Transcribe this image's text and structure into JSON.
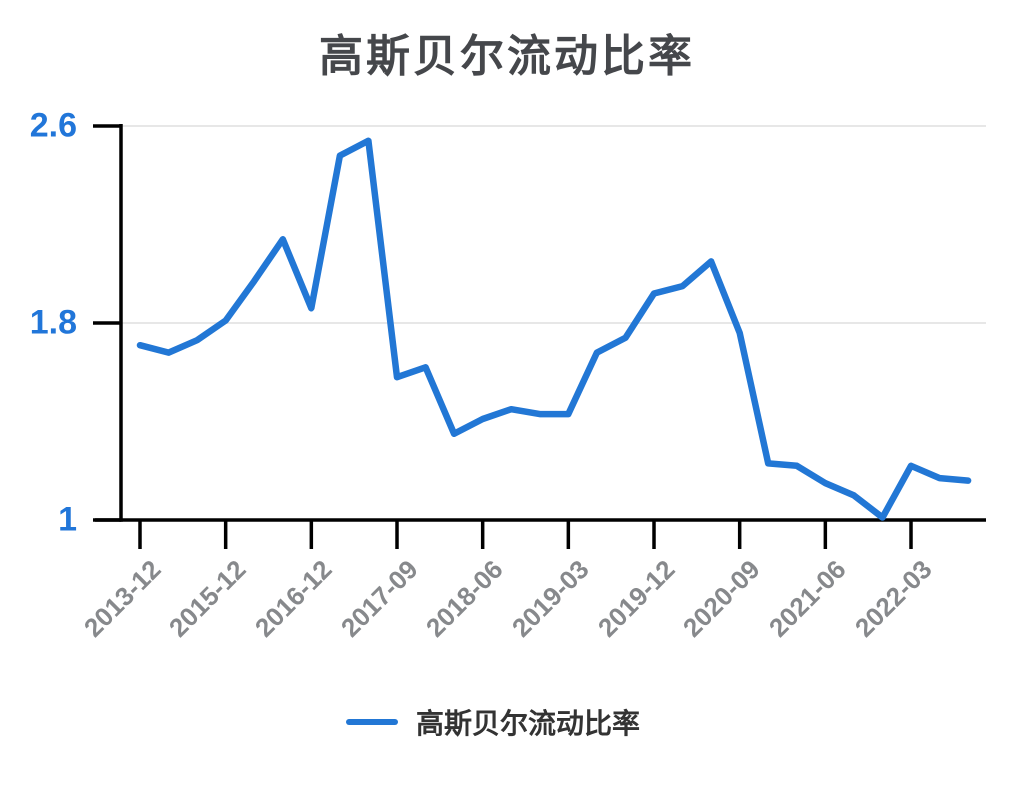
{
  "title": "高斯贝尔流动比率",
  "legend": {
    "label": "高斯贝尔流动比率"
  },
  "colors": {
    "line": "#2277d5",
    "axis": "#000000",
    "grid": "#e7e7e7",
    "y_label": "#2176d9",
    "x_label": "#87898c",
    "title": "#45474b",
    "legend_text": "#333333"
  },
  "chart_data": {
    "type": "line",
    "title": "高斯贝尔流动比率",
    "series": [
      {
        "name": "高斯贝尔流动比率",
        "values": [
          1.71,
          1.68,
          1.73,
          1.81,
          1.97,
          2.14,
          1.86,
          2.48,
          2.54,
          1.58,
          1.62,
          1.35,
          1.41,
          1.45,
          1.43,
          1.43,
          1.68,
          1.74,
          1.92,
          1.95,
          2.05,
          1.76,
          1.23,
          1.22,
          1.15,
          1.1,
          1.01,
          1.22,
          1.17,
          1.16
        ]
      }
    ],
    "n_points": 30,
    "x_tick_labels": [
      "2013-12",
      "2015-12",
      "2016-12",
      "2017-09",
      "2018-06",
      "2019-03",
      "2019-12",
      "2020-09",
      "2021-06",
      "2022-03"
    ],
    "x_label_every": 3,
    "y_ticks": [
      1,
      1.8,
      2.6
    ],
    "y_tick_labels": [
      "1",
      "1.8",
      "2.6"
    ],
    "ylim": [
      1,
      2.6
    ],
    "grid": "horizontal",
    "legend_position": "bottom"
  }
}
